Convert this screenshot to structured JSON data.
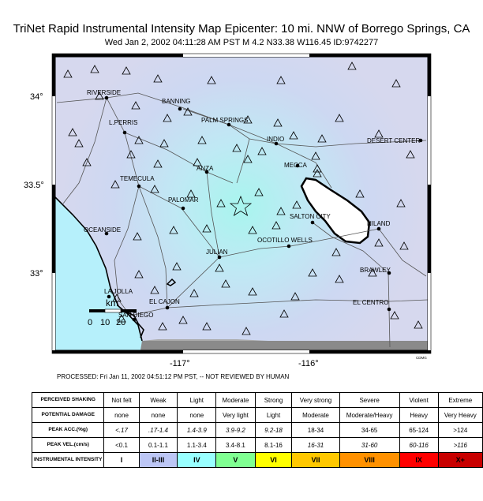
{
  "title": "TriNet Rapid Instrumental Intensity Map Epicenter: 10 mi. NNW of Borrego Springs, CA",
  "subtitle": "Wed Jan  2, 2002 04:11:28 AM PST   M 4.2   N33.38 W116.45    ID:9742277",
  "processed": "PROCESSED: Fri Jan 11, 2002 04:51:12 PM PST, -- NOT REVIEWED BY HUMAN",
  "map": {
    "lat_labels": [
      "34°",
      "33.5°",
      "33°"
    ],
    "lon_labels": [
      "-117°",
      "-116°"
    ],
    "credit": "CDMG",
    "scale_bar": {
      "unit": "km",
      "ticks": [
        "0",
        "10",
        "20"
      ]
    },
    "cities": [
      "RIVERSIDE",
      "BANNING",
      "PALM SPRINGS",
      "L.PERRIS",
      "INDIO",
      "DESERT CENTER",
      "MECCA",
      "ANZA",
      "TEMECULA",
      "PALOMAR",
      "SALTON CITY",
      "NILAND",
      "OCEANSIDE",
      "OCOTILLO WELLS",
      "JULIAN",
      "BRAWLEY",
      "LA JOLLA",
      "EL CAJON",
      "EL CENTRO",
      "SAN DIEGO"
    ],
    "epicenter_symbol": "star-icon",
    "station_symbol": "triangle-icon"
  },
  "legend": {
    "rows": [
      {
        "label": "PERCEIVED SHAKING",
        "cells": [
          "Not felt",
          "Weak",
          "Light",
          "Moderate",
          "Strong",
          "Very strong",
          "Severe",
          "Violent",
          "Extreme"
        ]
      },
      {
        "label": "POTENTIAL DAMAGE",
        "cells": [
          "none",
          "none",
          "none",
          "Very light",
          "Light",
          "Moderate",
          "Moderate/Heavy",
          "Heavy",
          "Very Heavy"
        ]
      },
      {
        "label": "PEAK ACC.(%g)",
        "cells": [
          "<.17",
          ".17-1.4",
          "1.4-3.9",
          "3.9-9.2",
          "9.2-18",
          "18-34",
          "34-65",
          "65-124",
          ">124"
        ]
      },
      {
        "label": "PEAK VEL.(cm/s)",
        "cells": [
          "<0.1",
          "0.1-1.1",
          "1.1-3.4",
          "3.4-8.1",
          "8.1-16",
          "16-31",
          "31-60",
          "60-116",
          ">116"
        ]
      },
      {
        "label": "INSTRUMENTAL INTENSITY",
        "cells": [
          "I",
          "II-III",
          "IV",
          "V",
          "VI",
          "VII",
          "VIII",
          "IX",
          "X+"
        ]
      }
    ],
    "intensity_colors": [
      "#ffffff",
      "#bcc6f5",
      "#99ffff",
      "#80ff92",
      "#ffff00",
      "#ffc800",
      "#ff9100",
      "#ff0000",
      "#c80000"
    ]
  }
}
